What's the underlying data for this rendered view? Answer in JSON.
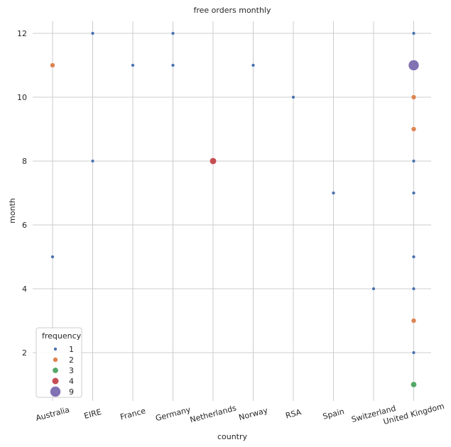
{
  "chart_data": {
    "type": "scatter",
    "title": "free orders monthly",
    "xlabel": "country",
    "ylabel": "month",
    "categories": [
      "Australia",
      "EIRE",
      "France",
      "Germany",
      "Netherlands",
      "Norway",
      "RSA",
      "Spain",
      "Switzerland",
      "United Kingdom"
    ],
    "ylim": [
      0.5,
      12.5
    ],
    "yticks": [
      2,
      4,
      6,
      8,
      10,
      12
    ],
    "grid": true,
    "x_tick_rotation": "rotated ~15 degrees",
    "legend": {
      "title": "frequency",
      "placement": "lower-left",
      "entries": [
        {
          "label": "1",
          "value": 1,
          "color": "#4c72b0"
        },
        {
          "label": "2",
          "value": 2,
          "color": "#dd8452"
        },
        {
          "label": "3",
          "value": 3,
          "color": "#55a868"
        },
        {
          "label": "4",
          "value": 4,
          "color": "#c44e52"
        },
        {
          "label": "9",
          "value": 9,
          "color": "#8172b3"
        }
      ]
    },
    "points": [
      {
        "country": "Australia",
        "month": 11,
        "frequency": 2
      },
      {
        "country": "Australia",
        "month": 5,
        "frequency": 1
      },
      {
        "country": "EIRE",
        "month": 12,
        "frequency": 1
      },
      {
        "country": "EIRE",
        "month": 8,
        "frequency": 1
      },
      {
        "country": "France",
        "month": 11,
        "frequency": 1
      },
      {
        "country": "Germany",
        "month": 12,
        "frequency": 1
      },
      {
        "country": "Germany",
        "month": 11,
        "frequency": 1
      },
      {
        "country": "Netherlands",
        "month": 8,
        "frequency": 4
      },
      {
        "country": "Norway",
        "month": 11,
        "frequency": 1
      },
      {
        "country": "RSA",
        "month": 10,
        "frequency": 1
      },
      {
        "country": "Spain",
        "month": 7,
        "frequency": 1
      },
      {
        "country": "Switzerland",
        "month": 4,
        "frequency": 1
      },
      {
        "country": "United Kingdom",
        "month": 12,
        "frequency": 1
      },
      {
        "country": "United Kingdom",
        "month": 11,
        "frequency": 9
      },
      {
        "country": "United Kingdom",
        "month": 10,
        "frequency": 2
      },
      {
        "country": "United Kingdom",
        "month": 9,
        "frequency": 2
      },
      {
        "country": "United Kingdom",
        "month": 8,
        "frequency": 1
      },
      {
        "country": "United Kingdom",
        "month": 7,
        "frequency": 1
      },
      {
        "country": "United Kingdom",
        "month": 5,
        "frequency": 1
      },
      {
        "country": "United Kingdom",
        "month": 4,
        "frequency": 1
      },
      {
        "country": "United Kingdom",
        "month": 3,
        "frequency": 2
      },
      {
        "country": "United Kingdom",
        "month": 2,
        "frequency": 1
      },
      {
        "country": "United Kingdom",
        "month": 1,
        "frequency": 3
      }
    ]
  }
}
